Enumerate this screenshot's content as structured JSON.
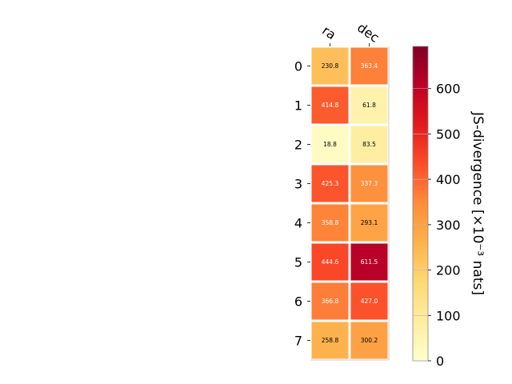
{
  "chart_data": {
    "type": "heatmap",
    "columns": [
      "ra",
      "dec"
    ],
    "rows": [
      "0",
      "1",
      "2",
      "3",
      "4",
      "5",
      "6",
      "7"
    ],
    "values": [
      [
        230.8,
        363.4
      ],
      [
        414.8,
        61.8
      ],
      [
        18.8,
        83.5
      ],
      [
        425.3,
        337.3
      ],
      [
        358.8,
        293.1
      ],
      [
        444.6,
        611.5
      ],
      [
        366.8,
        427.0
      ],
      [
        258.8,
        300.2
      ]
    ],
    "value_labels": [
      [
        "230.8",
        "363.4"
      ],
      [
        "414.8",
        "61.8"
      ],
      [
        "18.8",
        "83.5"
      ],
      [
        "425.3",
        "337.3"
      ],
      [
        "358.8",
        "293.1"
      ],
      [
        "444.6",
        "611.5"
      ],
      [
        "366.8",
        "427.0"
      ],
      [
        "258.8",
        "300.2"
      ]
    ],
    "colorbar": {
      "label": "JS-divergence [×10⁻³ nats]",
      "range": [
        0,
        693
      ],
      "ticks": [
        0,
        100,
        200,
        300,
        400,
        500,
        600
      ],
      "colormap": "YlOrRd"
    },
    "text_colors": {
      "dark": "#000000",
      "light": "#ffffff"
    }
  }
}
